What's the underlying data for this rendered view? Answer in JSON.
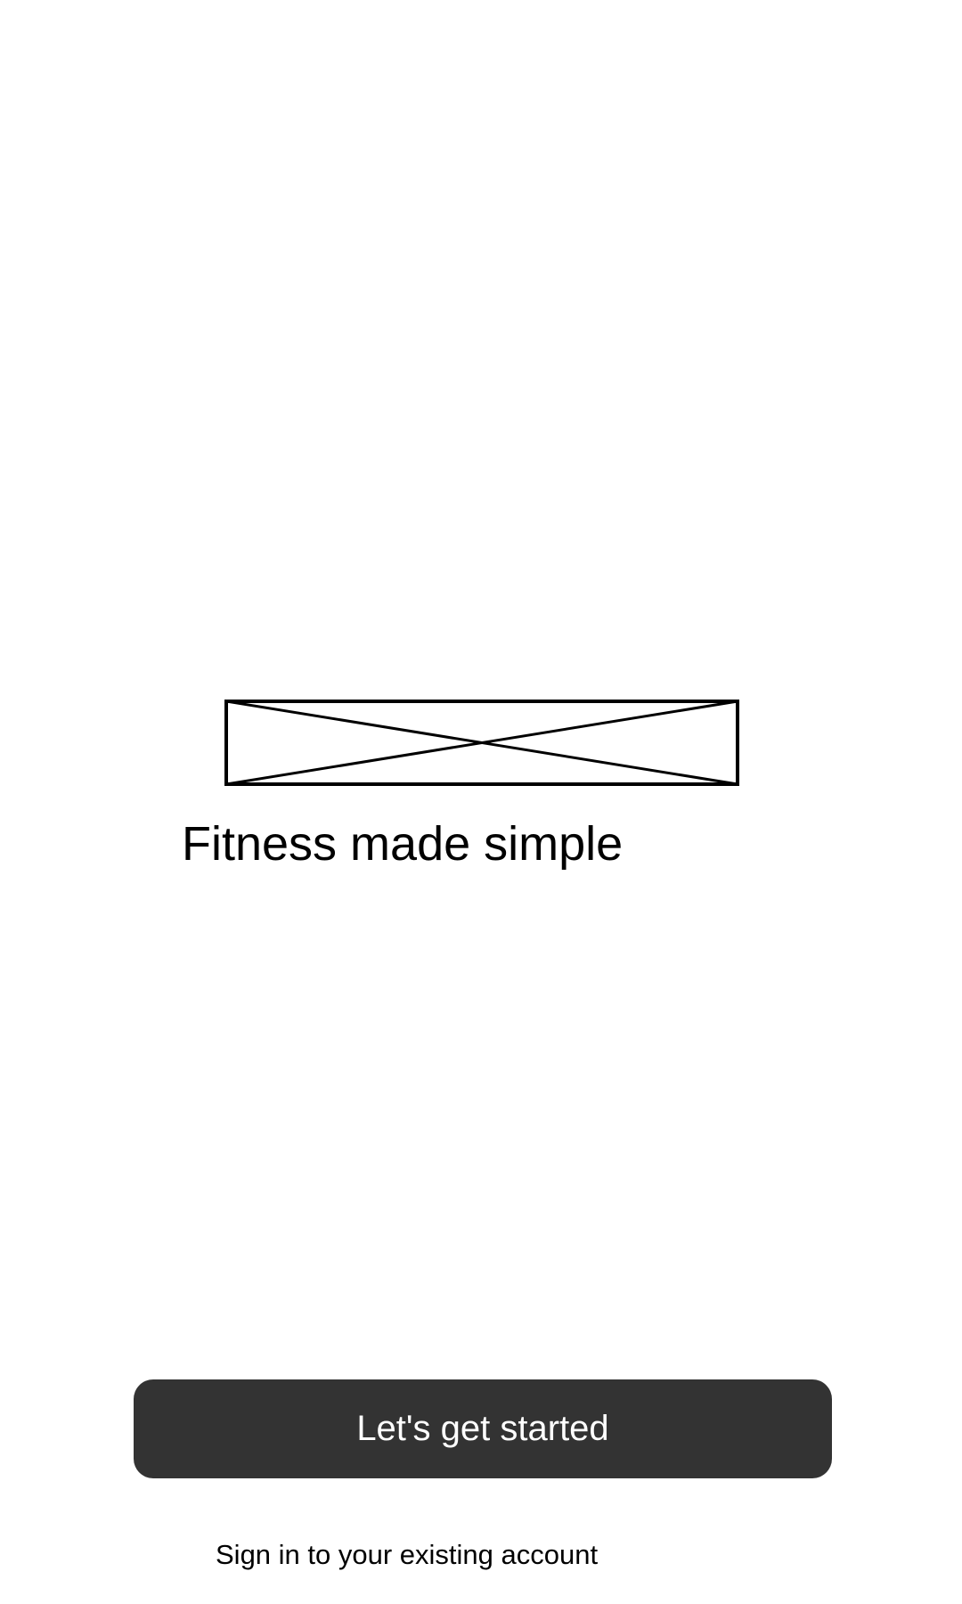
{
  "logo": {
    "icon": "image-placeholder-icon"
  },
  "hero": {
    "tagline": "Fitness made simple"
  },
  "actions": {
    "get_started_label": "Let's get started",
    "sign_in_label": "Sign in to your existing account"
  },
  "colors": {
    "background": "#ffffff",
    "button_background": "#333333",
    "button_text": "#ffffff",
    "text": "#000000"
  }
}
